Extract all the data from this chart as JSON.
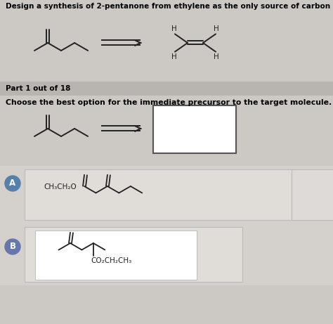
{
  "title": "Design a synthesis of 2-pentanone from ethylene as the only source of carbon in the target molecule.",
  "part_label": "Part 1 out of 18",
  "question": "Choose the best option for the immediate precursor to the target molecule.",
  "bg_color": "#ccc8c4",
  "panel_bg": "#d4d0cc",
  "white_bg": "#f0eeec",
  "part_bar_color": "#b8b4b0",
  "circle_color_a": "#5580aa",
  "circle_color_b": "#6677aa",
  "title_fontsize": 7.5,
  "body_fontsize": 7.8,
  "part_fontsize": 7.5
}
